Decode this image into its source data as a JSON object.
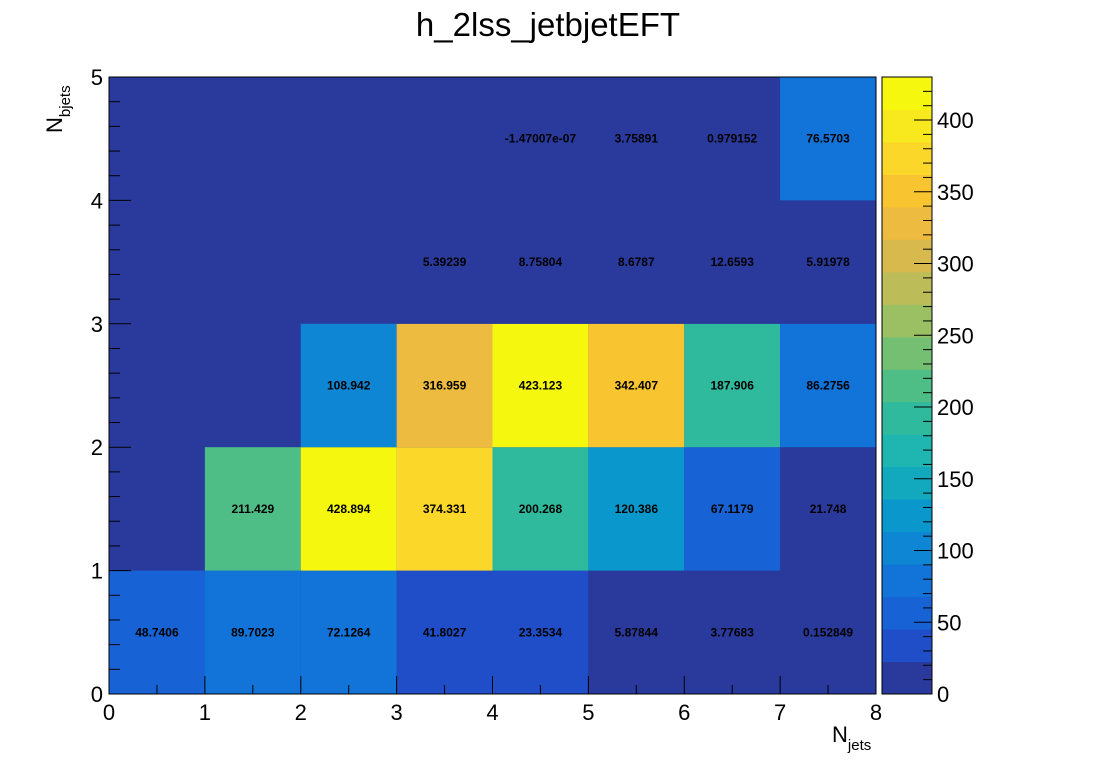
{
  "chart_data": {
    "type": "heatmap",
    "title": "h_2lss_jetbjetEFT",
    "xlabel": {
      "main": "N",
      "sub": "jets"
    },
    "ylabel": {
      "main": "N",
      "sub": "bjets"
    },
    "xlim": [
      0,
      8
    ],
    "ylim": [
      0,
      5
    ],
    "x_ticks": [
      "0",
      "1",
      "2",
      "3",
      "4",
      "5",
      "6",
      "7",
      "8"
    ],
    "y_ticks": [
      "0",
      "1",
      "2",
      "3",
      "4",
      "5"
    ],
    "zlim": [
      0,
      430
    ],
    "z_ticks": [
      "0",
      "50",
      "100",
      "150",
      "200",
      "250",
      "300",
      "350",
      "400"
    ],
    "colormap": [
      "#2a3a9c",
      "#1f4ec8",
      "#1763d6",
      "#1273d8",
      "#0e86d4",
      "#0a98cc",
      "#12a8be",
      "#1fb5b0",
      "#2fba9d",
      "#4fbd86",
      "#75bf73",
      "#9bbf63",
      "#bcbc58",
      "#d8b94d",
      "#ecbb3f",
      "#f8c42f",
      "#fbd72a",
      "#f8e91f",
      "#f6f70e"
    ],
    "cells": [
      {
        "x": 0,
        "y": 0,
        "value": 48.7406,
        "label": "48.7406"
      },
      {
        "x": 1,
        "y": 0,
        "value": 89.7023,
        "label": "89.7023"
      },
      {
        "x": 2,
        "y": 0,
        "value": 72.1264,
        "label": "72.1264"
      },
      {
        "x": 3,
        "y": 0,
        "value": 41.8027,
        "label": "41.8027"
      },
      {
        "x": 4,
        "y": 0,
        "value": 23.3534,
        "label": "23.3534"
      },
      {
        "x": 5,
        "y": 0,
        "value": 5.87844,
        "label": "5.87844"
      },
      {
        "x": 6,
        "y": 0,
        "value": 3.77683,
        "label": "3.77683"
      },
      {
        "x": 7,
        "y": 0,
        "value": 0.152849,
        "label": "0.152849"
      },
      {
        "x": 1,
        "y": 1,
        "value": 211.429,
        "label": "211.429"
      },
      {
        "x": 2,
        "y": 1,
        "value": 428.894,
        "label": "428.894"
      },
      {
        "x": 3,
        "y": 1,
        "value": 374.331,
        "label": "374.331"
      },
      {
        "x": 4,
        "y": 1,
        "value": 200.268,
        "label": "200.268"
      },
      {
        "x": 5,
        "y": 1,
        "value": 120.386,
        "label": "120.386"
      },
      {
        "x": 6,
        "y": 1,
        "value": 67.1179,
        "label": "67.1179"
      },
      {
        "x": 7,
        "y": 1,
        "value": 21.748,
        "label": "21.748"
      },
      {
        "x": 2,
        "y": 2,
        "value": 108.942,
        "label": "108.942"
      },
      {
        "x": 3,
        "y": 2,
        "value": 316.959,
        "label": "316.959"
      },
      {
        "x": 4,
        "y": 2,
        "value": 423.123,
        "label": "423.123"
      },
      {
        "x": 5,
        "y": 2,
        "value": 342.407,
        "label": "342.407"
      },
      {
        "x": 6,
        "y": 2,
        "value": 187.906,
        "label": "187.906"
      },
      {
        "x": 7,
        "y": 2,
        "value": 86.2756,
        "label": "86.2756"
      },
      {
        "x": 3,
        "y": 3,
        "value": 5.39239,
        "label": "5.39239"
      },
      {
        "x": 4,
        "y": 3,
        "value": 8.75804,
        "label": "8.75804"
      },
      {
        "x": 5,
        "y": 3,
        "value": 8.6787,
        "label": "8.6787"
      },
      {
        "x": 6,
        "y": 3,
        "value": 12.6593,
        "label": "12.6593"
      },
      {
        "x": 7,
        "y": 3,
        "value": 5.91978,
        "label": "5.91978"
      },
      {
        "x": 4,
        "y": 4,
        "value": -1.47007e-07,
        "label": "-1.47007e-07"
      },
      {
        "x": 5,
        "y": 4,
        "value": 3.75891,
        "label": "3.75891"
      },
      {
        "x": 6,
        "y": 4,
        "value": 0.979152,
        "label": "0.979152"
      },
      {
        "x": 7,
        "y": 4,
        "value": 76.5703,
        "label": "76.5703"
      }
    ]
  }
}
